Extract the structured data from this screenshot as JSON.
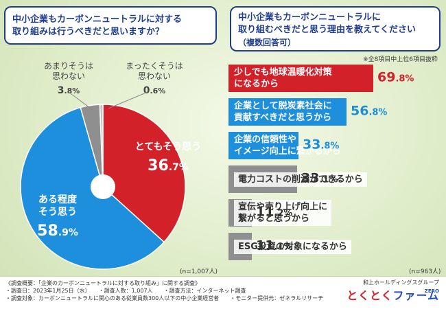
{
  "left_panel": {
    "title_line1": "中小企業もカーボンニュートラルに対する",
    "title_line2": "取り組みは行うべきだと思いますか？",
    "n_label": "(n=1,007人)"
  },
  "right_panel": {
    "title_line1": "中小企業もカーボンニュートラルに",
    "title_line2": "取り組むべきだと思う理由を教えてください",
    "title_line3": "（複数回答可）",
    "note": "※全8項目中上位6項目抜粋",
    "n_label": "(n=963人)"
  },
  "colors": {
    "red": "#d3212a",
    "blue": "#1e8fdc",
    "gray": "#8f8f8f",
    "light_gray": "#c4c4c4",
    "navy": "#1f3d8a"
  },
  "chart_data": [
    {
      "type": "pie",
      "categories": [
        "とてもそう思う",
        "ある程度そう思う",
        "あまりそうは思わない",
        "まったくそうは思わない"
      ],
      "values": [
        36.7,
        58.9,
        3.8,
        0.6
      ],
      "labels": [
        {
          "line1": "とてもそう思う",
          "line2": "",
          "int": "36",
          "dec": ".7%"
        },
        {
          "line1": "ある程度",
          "line2": "そう思う",
          "int": "58",
          "dec": ".9%"
        },
        {
          "line1": "あまりそうは",
          "line2": "思わない",
          "int": "3",
          "dec": ".8%"
        },
        {
          "line1": "まったくそうは",
          "line2": "思わない",
          "int": "0",
          "dec": ".6%"
        }
      ],
      "colors": [
        "#d3212a",
        "#1e8fdc",
        "#8f8f8f",
        "#c4c4c4"
      ],
      "unit": "%"
    },
    {
      "type": "bar",
      "categories": [
        "少しでも地球温暖化対策になるから",
        "企業として脱炭素社会に貢献すべきだと思うから",
        "企業の信頼性やイメージ向上に繋がるから",
        "電力コストの削減ができるから",
        "宣伝や売り上げ向上に繋がると思うから",
        "ESG投資の対象になるから"
      ],
      "values": [
        69.8,
        56.8,
        33.8,
        33.1,
        11.2,
        11.1
      ],
      "unit": "%"
    }
  ],
  "bars": [
    {
      "line1": "少しでも地球温暖化対策",
      "line2": "になるから",
      "int": "69",
      "dec": ".8%",
      "color": "red"
    },
    {
      "line1": "企業として脱炭素社会に",
      "line2": "貢献すべきだと思うから",
      "int": "56",
      "dec": ".8%",
      "color": "blue"
    },
    {
      "line1": "企業の信頼性や",
      "line2": "イメージ向上に繋がるから",
      "int": "33",
      "dec": ".8%",
      "color": "blue"
    },
    {
      "line1": "電力コストの削減ができるから",
      "line2": "",
      "int": "33",
      "dec": ".1%",
      "color": "gray"
    },
    {
      "line1": "宣伝や売り上げ向上に",
      "line2": "繋がると思うから",
      "int": "11",
      "dec": ".2%",
      "color": "gray"
    },
    {
      "line1": "ESG投資の対象になるから",
      "line2": "",
      "int": "11",
      "dec": ".1%",
      "color": "gray"
    }
  ],
  "footer": {
    "survey_title": "《調査概要：「企業のカーボンニュートラルに対する取り組み」に関する調査》",
    "survey_line1": "・調査日：2023年1月25日（水）　　・調査人数：1,007人　　・調査方法：インターネット調査",
    "survey_line2": "・調査対象：カーボンニュートラルに関心のある従業員数300人以下の中小企業経営者　　・モニター提供元：ゼネラルリサーチ",
    "brand_company": "和上ホールディングスグループ",
    "brand_name_a": "とくとく",
    "brand_name_b": "ファーム",
    "brand_zero": "ZERO"
  }
}
